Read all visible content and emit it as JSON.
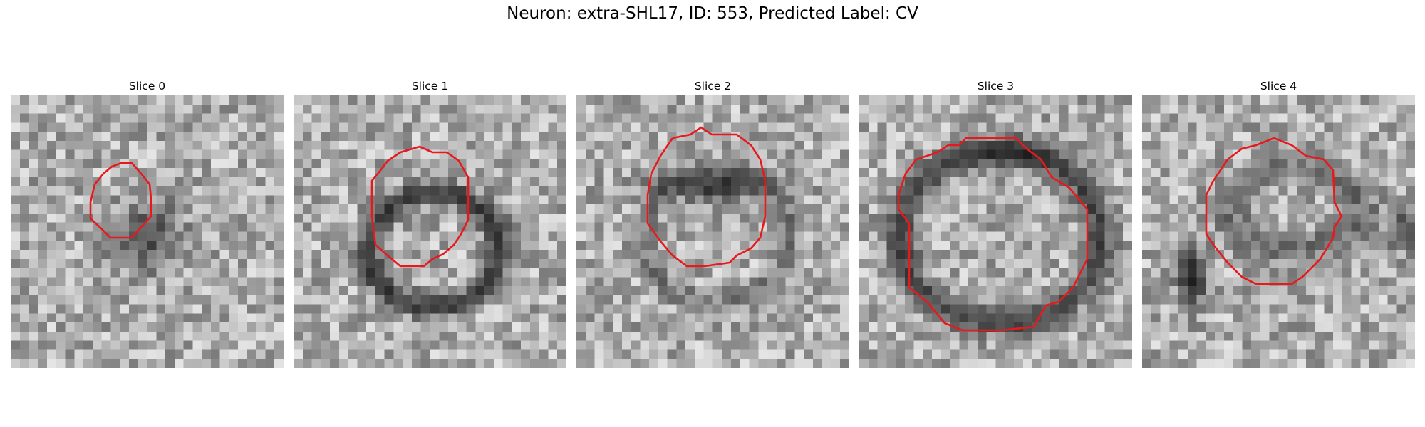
{
  "figure": {
    "title": "Neuron: extra-SHL17, ID: 553, Predicted Label: CV"
  },
  "colors": {
    "contour": "#e8191c",
    "background": "#ffffff"
  },
  "panels": [
    {
      "title": "Slice 0",
      "roi": "small-octagon-dark-center"
    },
    {
      "title": "Slice 1",
      "roi": "ring-dark-top"
    },
    {
      "title": "Slice 2",
      "roi": "ring-dark-top-band"
    },
    {
      "title": "Slice 3",
      "roi": "large-ring-dark-border"
    },
    {
      "title": "Slice 4",
      "roi": "ring-dark-left-blob"
    }
  ]
}
